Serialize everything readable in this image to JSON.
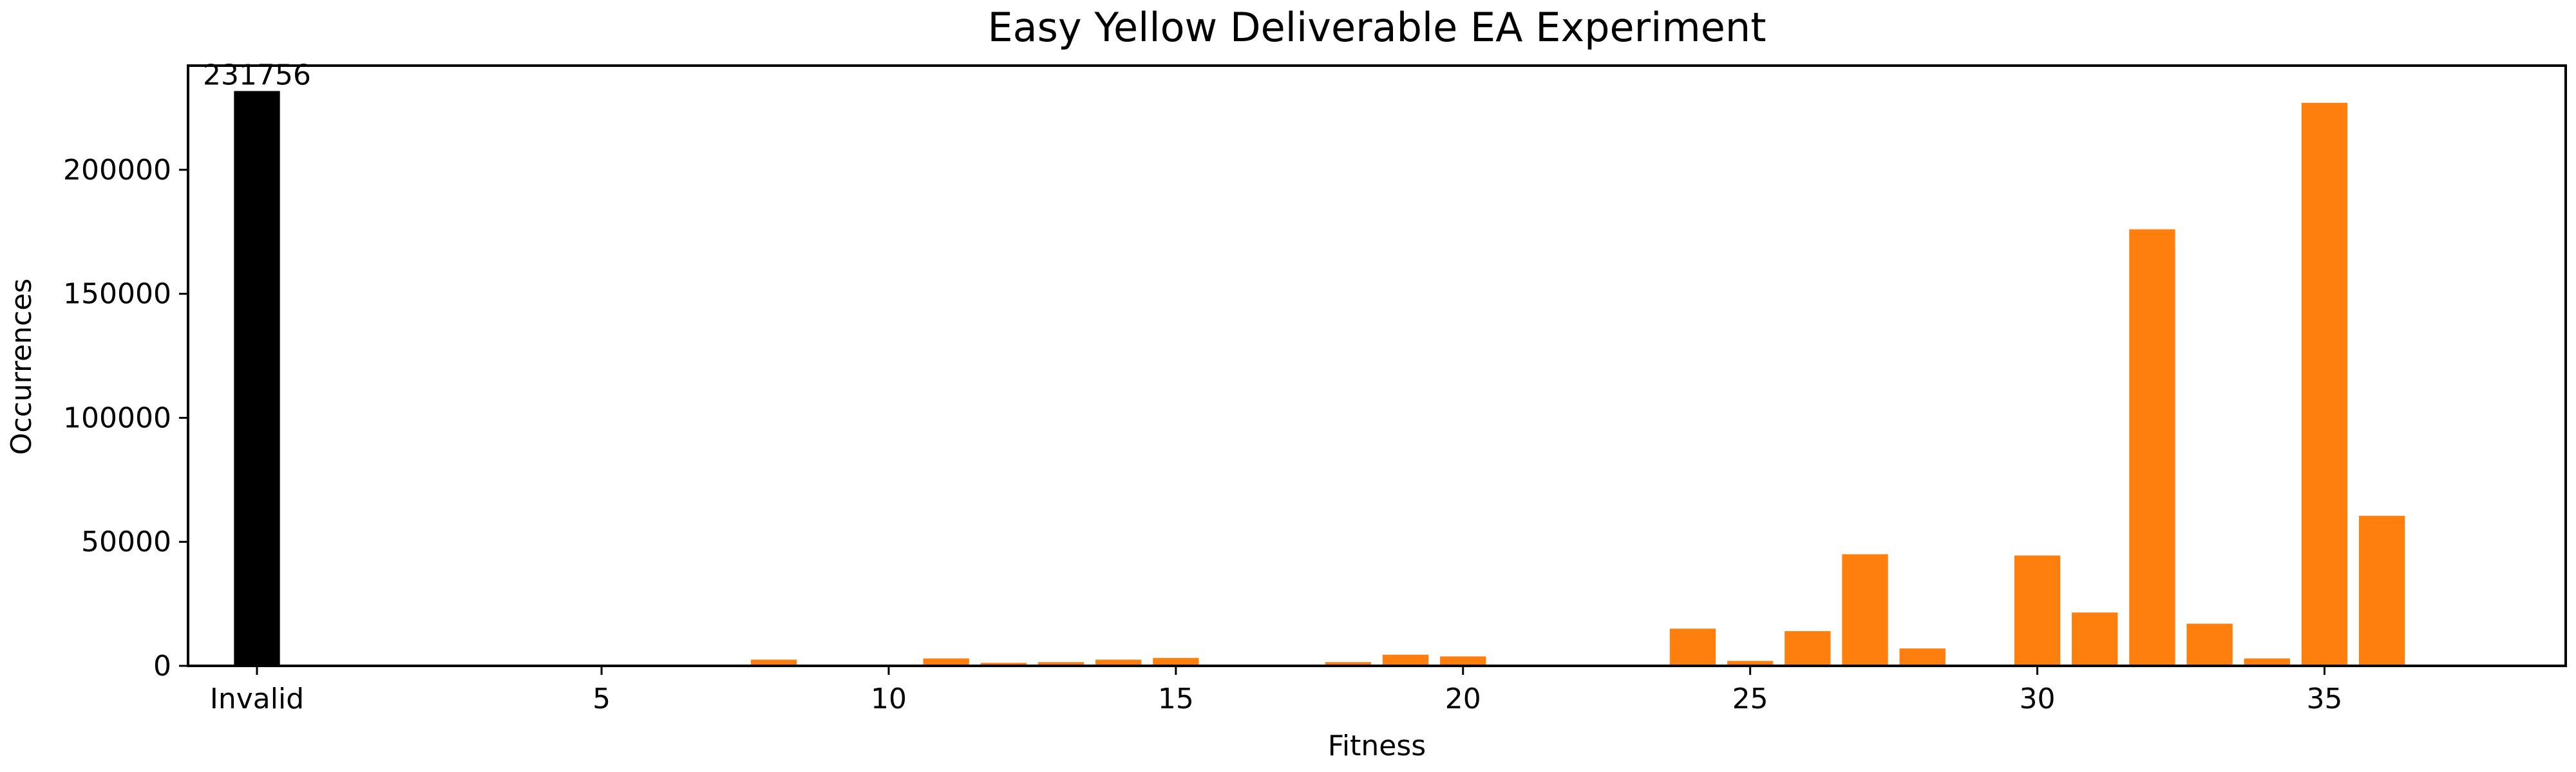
{
  "chart_data": {
    "type": "bar",
    "title": "Easy Yellow Deliverable EA Experiment",
    "xlabel": "Fitness",
    "ylabel": "Occurrences",
    "ylim": [
      0,
      242000
    ],
    "xlim": [
      -1.2,
      40.2
    ],
    "grid": false,
    "legend": "none",
    "x_ticks": [
      {
        "x": 0,
        "label": "Invalid"
      },
      {
        "x": 6,
        "label": "5"
      },
      {
        "x": 11,
        "label": "10"
      },
      {
        "x": 16,
        "label": "15"
      },
      {
        "x": 21,
        "label": "20"
      },
      {
        "x": 26,
        "label": "25"
      },
      {
        "x": 31,
        "label": "30"
      },
      {
        "x": 36,
        "label": "35"
      }
    ],
    "y_ticks": [
      {
        "y": 0,
        "label": "0"
      },
      {
        "y": 50000,
        "label": "50000"
      },
      {
        "y": 100000,
        "label": "100000"
      },
      {
        "y": 150000,
        "label": "150000"
      },
      {
        "y": 200000,
        "label": "200000"
      }
    ],
    "series": [
      {
        "color": "#000000",
        "points": [
          {
            "x": 0,
            "category": "Invalid",
            "value": 231756,
            "label": "231756"
          }
        ]
      },
      {
        "color": "#ff7f0e",
        "points": [
          {
            "x": 5,
            "category": "4",
            "value": 400
          },
          {
            "x": 6,
            "category": "5",
            "value": 150
          },
          {
            "x": 7,
            "category": "6",
            "value": 100
          },
          {
            "x": 8,
            "category": "7",
            "value": 100
          },
          {
            "x": 9,
            "category": "8",
            "value": 2500
          },
          {
            "x": 10,
            "category": "9",
            "value": 150
          },
          {
            "x": 11,
            "category": "10",
            "value": 150
          },
          {
            "x": 12,
            "category": "11",
            "value": 3000
          },
          {
            "x": 13,
            "category": "12",
            "value": 1200
          },
          {
            "x": 14,
            "category": "13",
            "value": 1500
          },
          {
            "x": 15,
            "category": "14",
            "value": 2500
          },
          {
            "x": 16,
            "category": "15",
            "value": 3200
          },
          {
            "x": 17,
            "category": "16",
            "value": 150
          },
          {
            "x": 18,
            "category": "17",
            "value": 150
          },
          {
            "x": 19,
            "category": "18",
            "value": 1500
          },
          {
            "x": 20,
            "category": "19",
            "value": 4500
          },
          {
            "x": 21,
            "category": "20",
            "value": 3800
          },
          {
            "x": 22,
            "category": "21",
            "value": 150
          },
          {
            "x": 23,
            "category": "22",
            "value": 150
          },
          {
            "x": 24,
            "category": "23",
            "value": 200
          },
          {
            "x": 25,
            "category": "24",
            "value": 15000
          },
          {
            "x": 26,
            "category": "25",
            "value": 2000
          },
          {
            "x": 27,
            "category": "26",
            "value": 14000
          },
          {
            "x": 28,
            "category": "27",
            "value": 45000
          },
          {
            "x": 29,
            "category": "28",
            "value": 7000
          },
          {
            "x": 30,
            "category": "29",
            "value": 500
          },
          {
            "x": 31,
            "category": "30",
            "value": 44500
          },
          {
            "x": 32,
            "category": "31",
            "value": 21500
          },
          {
            "x": 33,
            "category": "32",
            "value": 176000
          },
          {
            "x": 34,
            "category": "33",
            "value": 17000
          },
          {
            "x": 35,
            "category": "34",
            "value": 3000
          },
          {
            "x": 36,
            "category": "35",
            "value": 227000
          },
          {
            "x": 37,
            "category": "36",
            "value": 60500
          }
        ]
      }
    ]
  }
}
